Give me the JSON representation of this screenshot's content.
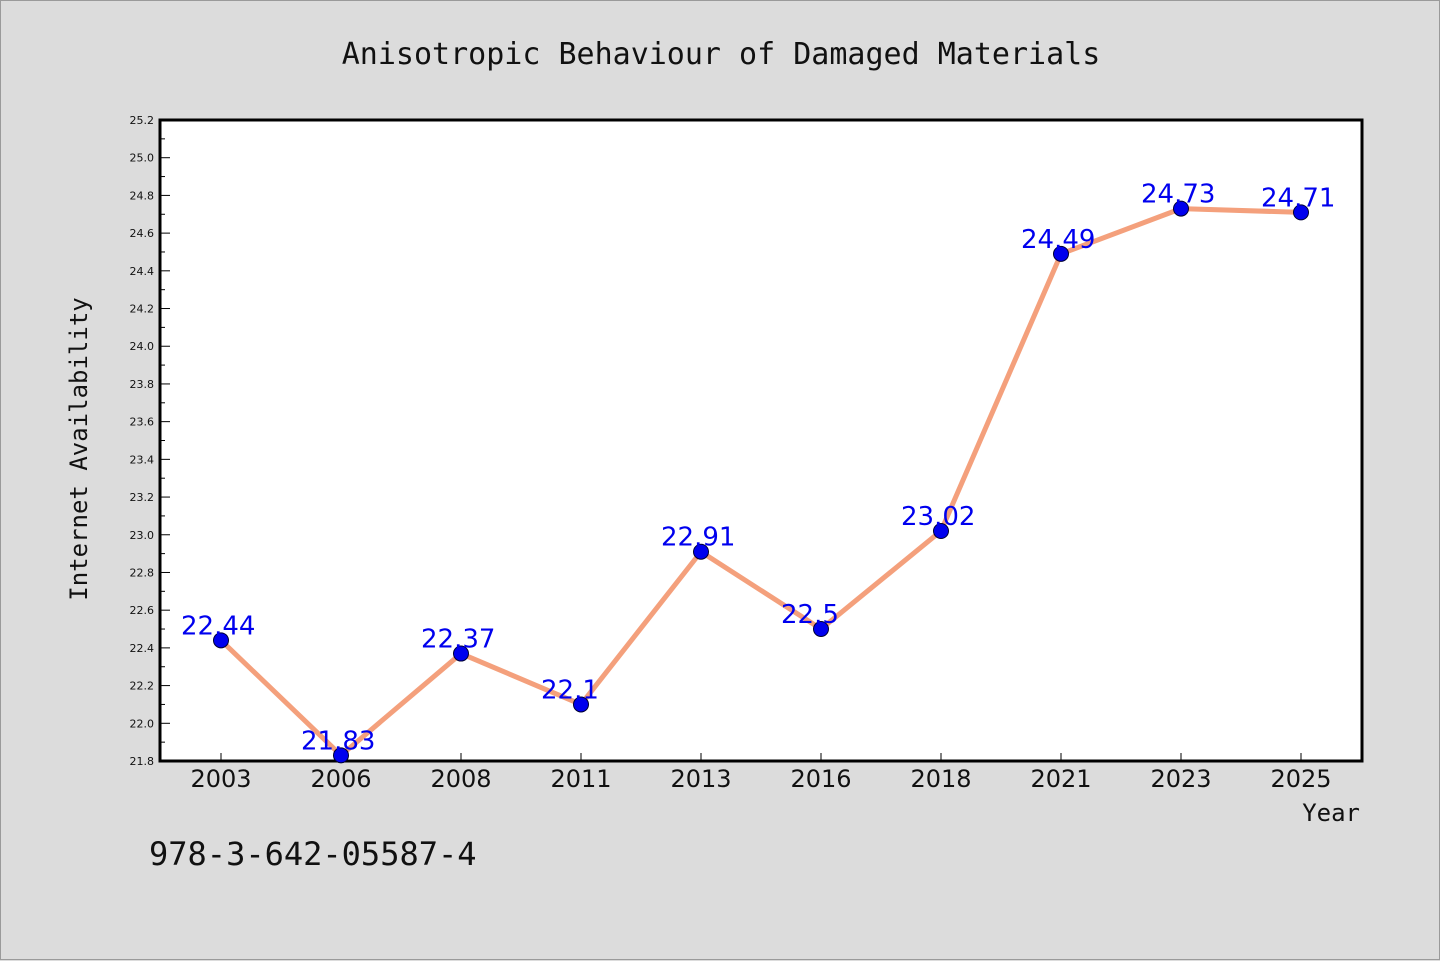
{
  "chart_data": {
    "type": "line",
    "title": "Anisotropic Behaviour of Damaged Materials",
    "xlabel": "Year",
    "ylabel": "Internet Availability",
    "categories": [
      "2003",
      "2006",
      "2008",
      "2011",
      "2013",
      "2016",
      "2018",
      "2021",
      "2023",
      "2025"
    ],
    "series": [
      {
        "values": [
          22.44,
          21.83,
          22.37,
          22.1,
          22.91,
          22.5,
          23.02,
          24.49,
          24.73,
          24.71
        ],
        "labels": [
          "22.44",
          "21.83",
          "22.37",
          "22.1",
          "22.91",
          "22.5",
          "23.02",
          "24.49",
          "24.73",
          "24.71"
        ]
      }
    ],
    "ylim": [
      21.8,
      25.2
    ],
    "yticks": [
      "21.8",
      "22.0",
      "22.2",
      "22.4",
      "22.6",
      "22.8",
      "23.0",
      "23.2",
      "23.4",
      "23.6",
      "23.8",
      "24.0",
      "24.2",
      "24.4",
      "24.6",
      "24.8",
      "25.0",
      "25.2"
    ],
    "grid": false,
    "legend": "none",
    "colors": {
      "line": "#f4a07c",
      "marker": "#0000ee",
      "marker_edge": "#000033",
      "data_label": "#0000ee",
      "plot_background": "#ffffff",
      "figure_background": "#dcdcdc"
    }
  },
  "footer": {
    "isbn": "978-3-642-05587-4"
  }
}
